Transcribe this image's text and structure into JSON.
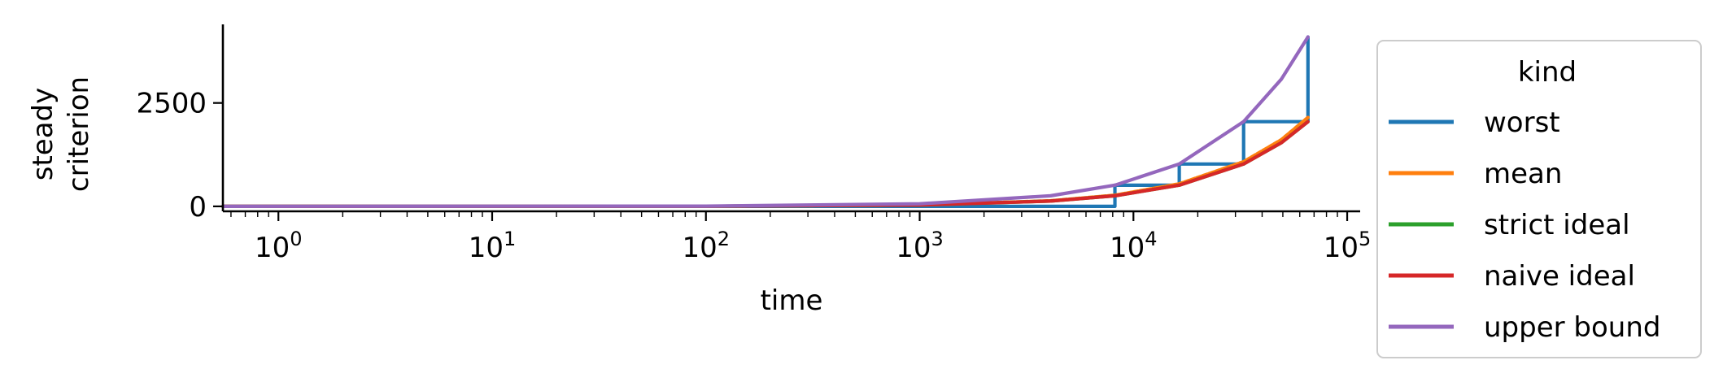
{
  "chart_data": {
    "type": "line",
    "xlabel": "time",
    "ylabel": [
      "steady",
      "criterion"
    ],
    "x_scale": "log",
    "xlim": [
      0.55,
      115000
    ],
    "ylim": [
      -120,
      4400
    ],
    "x_ticks": [
      {
        "value": 1,
        "base": "10",
        "exp": "0"
      },
      {
        "value": 10,
        "base": "10",
        "exp": "1"
      },
      {
        "value": 100,
        "base": "10",
        "exp": "2"
      },
      {
        "value": 1000,
        "base": "10",
        "exp": "3"
      },
      {
        "value": 10000,
        "base": "10",
        "exp": "4"
      },
      {
        "value": 100000,
        "base": "10",
        "exp": "5"
      }
    ],
    "y_ticks": [
      {
        "value": 0,
        "label": "0"
      },
      {
        "value": 2500,
        "label": "2500"
      }
    ],
    "legend": {
      "title": "kind",
      "placement": "right-outside"
    },
    "series": [
      {
        "name": "worst",
        "color": "#1f77b4",
        "x": [
          0.55,
          8192,
          8192,
          16384,
          16384,
          32768,
          32768,
          65536,
          65536
        ],
        "y": [
          0,
          0,
          512,
          512,
          1024,
          1024,
          2048,
          2048,
          4096
        ]
      },
      {
        "name": "mean",
        "color": "#ff7f0e",
        "x": [
          0.55,
          100,
          1000,
          4096,
          8192,
          16384,
          32768,
          49152,
          65536
        ],
        "y": [
          0,
          3,
          33,
          135,
          270,
          545,
          1080,
          1610,
          2150
        ]
      },
      {
        "name": "strict ideal",
        "color": "#2ca02c",
        "x": [
          0.55,
          100,
          1000,
          4096,
          8192,
          16384,
          32768,
          49152,
          65536
        ],
        "y": [
          0,
          3,
          31,
          128,
          256,
          512,
          1024,
          1536,
          2048
        ]
      },
      {
        "name": "naive ideal",
        "color": "#d62728",
        "x": [
          0.55,
          100,
          1000,
          4096,
          8192,
          16384,
          32768,
          49152,
          65536
        ],
        "y": [
          0,
          3,
          31,
          128,
          256,
          512,
          1024,
          1536,
          2048
        ]
      },
      {
        "name": "upper bound",
        "color": "#9467bd",
        "x": [
          0.55,
          100,
          1000,
          4096,
          8192,
          16384,
          32768,
          49152,
          65536
        ],
        "y": [
          0,
          6,
          62,
          256,
          512,
          1024,
          2048,
          3072,
          4096
        ]
      }
    ]
  }
}
